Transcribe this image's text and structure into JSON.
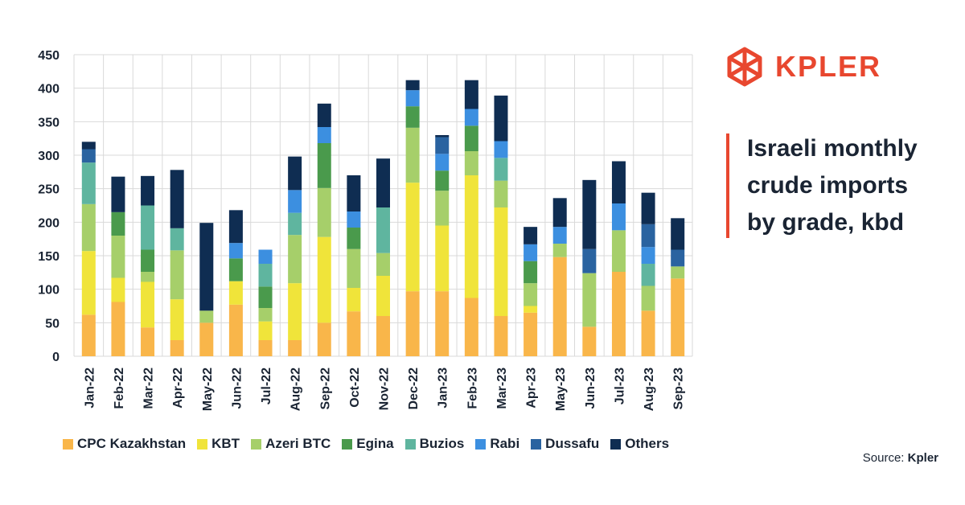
{
  "brand": {
    "name": "KPLER",
    "color": "#e8472f"
  },
  "title": "Israeli monthly crude imports by grade, kbd",
  "source": {
    "label": "Source:",
    "value": "Kpler"
  },
  "chart_data": {
    "type": "bar",
    "stacked": true,
    "title": "Israeli monthly crude imports by grade, kbd",
    "xlabel": "",
    "ylabel": "",
    "ylim": [
      0,
      450
    ],
    "yticks": [
      0,
      50,
      100,
      150,
      200,
      250,
      300,
      350,
      400,
      450
    ],
    "grid": true,
    "legend_position": "bottom",
    "categories": [
      "Jan-22",
      "Feb-22",
      "Mar-22",
      "Apr-22",
      "May-22",
      "Jun-22",
      "Jul-22",
      "Aug-22",
      "Sep-22",
      "Oct-22",
      "Nov-22",
      "Dec-22",
      "Jan-23",
      "Feb-23",
      "Mar-23",
      "Apr-23",
      "May-23",
      "Jun-23",
      "Jul-23",
      "Aug-23",
      "Sep-23"
    ],
    "series": [
      {
        "name": "CPC Kazakhstan",
        "color": "#f9b64a",
        "values": [
          62,
          81,
          43,
          24,
          50,
          77,
          24,
          24,
          50,
          67,
          60,
          97,
          97,
          87,
          60,
          65,
          148,
          44,
          126,
          68,
          116
        ]
      },
      {
        "name": "KBT",
        "color": "#f0e43a",
        "values": [
          95,
          36,
          68,
          61,
          0,
          35,
          28,
          85,
          128,
          35,
          60,
          162,
          98,
          183,
          162,
          10,
          0,
          0,
          0,
          0,
          0
        ]
      },
      {
        "name": "Azeri BTC",
        "color": "#a6cf6a",
        "values": [
          70,
          63,
          15,
          73,
          18,
          0,
          20,
          72,
          73,
          58,
          34,
          82,
          52,
          36,
          40,
          34,
          20,
          80,
          62,
          37,
          18
        ]
      },
      {
        "name": "Egina",
        "color": "#4a9a4c",
        "values": [
          0,
          35,
          33,
          0,
          0,
          34,
          32,
          0,
          67,
          32,
          0,
          32,
          30,
          38,
          0,
          33,
          0,
          0,
          0,
          0,
          0
        ]
      },
      {
        "name": "Buzios",
        "color": "#5fb59f",
        "values": [
          62,
          0,
          66,
          33,
          0,
          0,
          34,
          33,
          0,
          0,
          68,
          0,
          0,
          0,
          34,
          0,
          0,
          0,
          0,
          33,
          0
        ]
      },
      {
        "name": "Rabi",
        "color": "#3c8fe0",
        "values": [
          0,
          0,
          0,
          0,
          0,
          23,
          21,
          34,
          24,
          24,
          0,
          24,
          25,
          25,
          25,
          25,
          25,
          0,
          40,
          25,
          0
        ]
      },
      {
        "name": "Dussafu",
        "color": "#2a63a0",
        "values": [
          20,
          0,
          0,
          0,
          0,
          0,
          0,
          0,
          0,
          0,
          0,
          0,
          25,
          0,
          0,
          0,
          0,
          36,
          0,
          34,
          25
        ]
      },
      {
        "name": "Others",
        "color": "#0f2d52",
        "values": [
          11,
          53,
          44,
          87,
          131,
          49,
          0,
          50,
          35,
          54,
          73,
          15,
          3,
          43,
          68,
          26,
          43,
          103,
          63,
          47,
          47
        ]
      }
    ]
  }
}
